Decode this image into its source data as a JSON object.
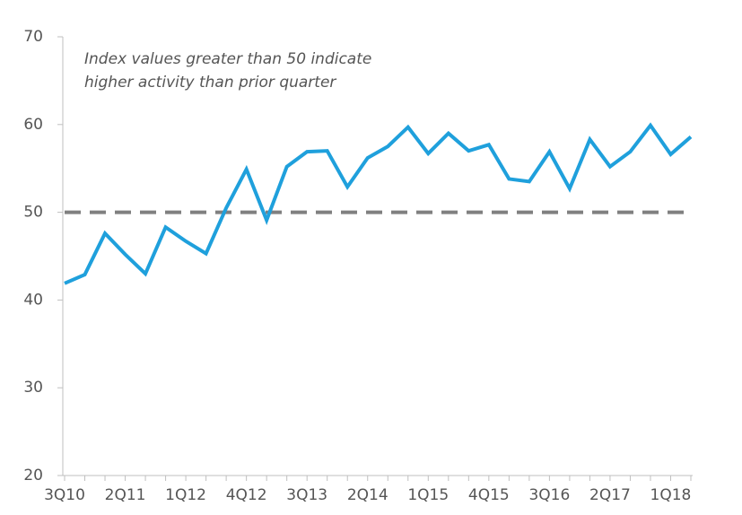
{
  "chart_data": {
    "type": "line",
    "annotation": [
      "Index values greater than 50 indicate",
      "higher activity than prior quarter"
    ],
    "categories": [
      "3Q10",
      null,
      null,
      "2Q11",
      null,
      null,
      "1Q12",
      null,
      null,
      "4Q12",
      null,
      null,
      "3Q13",
      null,
      null,
      "2Q14",
      null,
      null,
      "1Q15",
      null,
      null,
      "4Q15",
      null,
      null,
      "3Q16",
      null,
      null,
      "2Q17",
      null,
      null,
      "1Q18",
      null
    ],
    "series": [
      {
        "name": "Index",
        "color": "#1fa0dc",
        "values": [
          41.9,
          42.9,
          47.6,
          45.2,
          43.0,
          48.3,
          46.7,
          45.3,
          50.5,
          54.9,
          49.1,
          55.2,
          56.9,
          57.0,
          52.9,
          56.2,
          57.5,
          59.7,
          56.7,
          59.0,
          57.0,
          57.7,
          53.8,
          53.5,
          56.9,
          52.7,
          58.3,
          55.2,
          56.9,
          59.9,
          56.6,
          58.6
        ]
      }
    ],
    "reference_line": 50,
    "reference_color": "#808080",
    "ylim": [
      20,
      70
    ],
    "yticks": [
      20,
      30,
      40,
      50,
      60,
      70
    ]
  }
}
